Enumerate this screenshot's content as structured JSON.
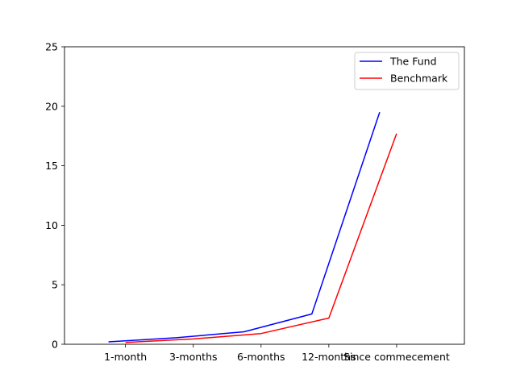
{
  "chart_data": {
    "type": "line",
    "categories": [
      "1-month",
      "3-months",
      "6-months",
      "12-months",
      "Since commecement"
    ],
    "series": [
      {
        "name": "The Fund",
        "color": "#0000ff",
        "values": [
          0.2,
          0.55,
          1.05,
          2.55,
          19.5
        ],
        "offset": -0.25
      },
      {
        "name": "Benchmark",
        "color": "#ff0000",
        "values": [
          0.15,
          0.45,
          0.9,
          2.2,
          17.7
        ],
        "offset": 0.0
      }
    ],
    "yticks": [
      0,
      5,
      10,
      15,
      20,
      25
    ],
    "ylim": [
      0,
      25
    ],
    "xlim": [
      -0.9,
      5.0
    ],
    "grid": false,
    "legend": "top-right"
  }
}
